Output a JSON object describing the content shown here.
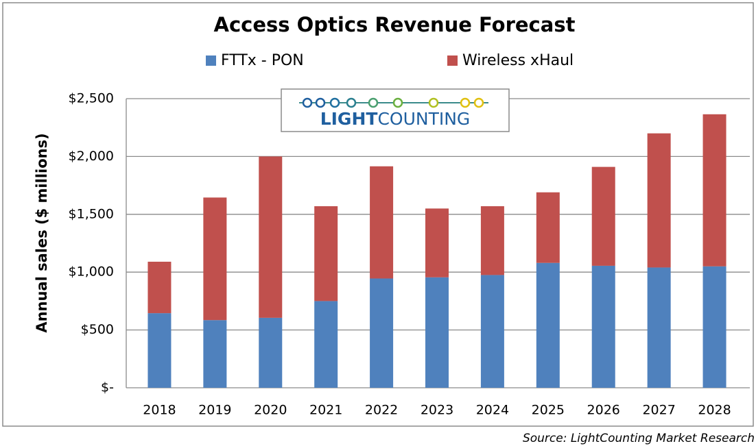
{
  "chart_data": {
    "type": "bar",
    "stacked": true,
    "title": "Access Optics Revenue Forecast",
    "y_label": "Annual sales ($ millions)",
    "source": "Source: LightCounting Market Research",
    "logo": {
      "part1": "LIGHT",
      "part2": "COUNTING"
    },
    "categories": [
      "2018",
      "2019",
      "2020",
      "2021",
      "2022",
      "2023",
      "2024",
      "2025",
      "2026",
      "2027",
      "2028"
    ],
    "series": [
      {
        "name": "FTTx - PON",
        "color": "#4f81bd",
        "values": [
          645,
          585,
          605,
          750,
          945,
          955,
          975,
          1080,
          1055,
          1040,
          1050
        ]
      },
      {
        "name": "Wireless xHaul",
        "color": "#c0504d",
        "values": [
          445,
          1060,
          1395,
          820,
          970,
          595,
          595,
          610,
          855,
          1160,
          1315
        ]
      }
    ],
    "ylim": [
      0,
      2500
    ],
    "yticks": [
      {
        "value": 0,
        "label": "$-"
      },
      {
        "value": 500,
        "label": "$500"
      },
      {
        "value": 1000,
        "label": "$1,000"
      },
      {
        "value": 1500,
        "label": "$1,500"
      },
      {
        "value": 2000,
        "label": "$2,000"
      },
      {
        "value": 2500,
        "label": "$2,500"
      }
    ],
    "grid": true
  }
}
